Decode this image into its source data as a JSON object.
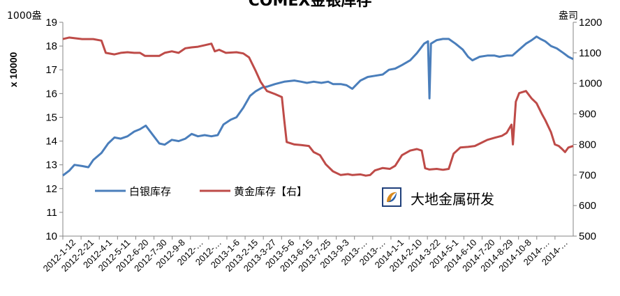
{
  "title": "COMEX金银库存",
  "left_unit": "1000盎",
  "right_unit": "盎司",
  "left_axis_label": "x 10000",
  "watermark": {
    "text": "大地金属研发",
    "icon": "dadi-logo-icon"
  },
  "colors": {
    "silver": "#4A7EBB",
    "gold": "#BE4B48",
    "axis": "#868686"
  },
  "chart_data": {
    "type": "line",
    "title": "COMEX金银库存",
    "legend_position": "center-left-inside",
    "grid": false,
    "x_tick_labels": [
      "2012-1-12",
      "2012-2-21",
      "2012-4-1",
      "2012-5-11",
      "2012-6-20",
      "2012-7-30",
      "2012-9-8",
      "2012-…",
      "2012-…",
      "2013-1-6",
      "2013-2-15",
      "2013-3-27",
      "2013-5-6",
      "2013-6-15",
      "2013-7-25",
      "2013-9-3",
      "2013-…",
      "2013-…",
      "2014-1-1",
      "2014-2-10",
      "2014-3-22",
      "2014-5-1",
      "2014-6-10",
      "2014-7-20",
      "2014-8-29",
      "2014-10-8",
      "2014-…",
      "2014-…"
    ],
    "x_range": [
      "2012-1-12",
      "2014-12-05"
    ],
    "y_left": {
      "label": "x 10000",
      "unit": "1000盎",
      "min": 10,
      "max": 19,
      "ticks": [
        10,
        11,
        12,
        13,
        14,
        15,
        16,
        17,
        18,
        19
      ]
    },
    "y_right": {
      "unit": "盎司",
      "min": 500,
      "max": 1200,
      "ticks": [
        500,
        600,
        700,
        800,
        900,
        1000,
        1100,
        1200
      ]
    },
    "series": [
      {
        "name": "白银库存",
        "axis": "left",
        "color": "#4A7EBB",
        "points": [
          [
            "2012-01-12",
            12.55
          ],
          [
            "2012-01-25",
            12.75
          ],
          [
            "2012-02-05",
            13.0
          ],
          [
            "2012-02-21",
            12.95
          ],
          [
            "2012-03-05",
            12.9
          ],
          [
            "2012-03-15",
            13.2
          ],
          [
            "2012-04-01",
            13.5
          ],
          [
            "2012-04-15",
            13.9
          ],
          [
            "2012-04-28",
            14.15
          ],
          [
            "2012-05-11",
            14.1
          ],
          [
            "2012-05-25",
            14.2
          ],
          [
            "2012-06-08",
            14.4
          ],
          [
            "2012-06-20",
            14.5
          ],
          [
            "2012-07-02",
            14.65
          ],
          [
            "2012-07-15",
            14.3
          ],
          [
            "2012-07-30",
            13.9
          ],
          [
            "2012-08-10",
            13.85
          ],
          [
            "2012-08-25",
            14.05
          ],
          [
            "2012-09-08",
            14.0
          ],
          [
            "2012-09-22",
            14.1
          ],
          [
            "2012-10-05",
            14.3
          ],
          [
            "2012-10-18",
            14.2
          ],
          [
            "2012-11-01",
            14.25
          ],
          [
            "2012-11-15",
            14.2
          ],
          [
            "2012-11-28",
            14.25
          ],
          [
            "2012-12-10",
            14.7
          ],
          [
            "2012-12-25",
            14.9
          ],
          [
            "2013-01-06",
            15.0
          ],
          [
            "2013-01-20",
            15.4
          ],
          [
            "2013-02-03",
            15.9
          ],
          [
            "2013-02-15",
            16.1
          ],
          [
            "2013-02-28",
            16.25
          ],
          [
            "2013-03-12",
            16.3
          ],
          [
            "2013-03-27",
            16.4
          ],
          [
            "2013-04-15",
            16.5
          ],
          [
            "2013-05-06",
            16.55
          ],
          [
            "2013-05-20",
            16.5
          ],
          [
            "2013-06-01",
            16.45
          ],
          [
            "2013-06-15",
            16.5
          ],
          [
            "2013-07-01",
            16.45
          ],
          [
            "2013-07-15",
            16.5
          ],
          [
            "2013-07-25",
            16.4
          ],
          [
            "2013-08-10",
            16.4
          ],
          [
            "2013-08-22",
            16.35
          ],
          [
            "2013-09-03",
            16.2
          ],
          [
            "2013-09-20",
            16.55
          ],
          [
            "2013-10-05",
            16.7
          ],
          [
            "2013-10-20",
            16.75
          ],
          [
            "2013-11-05",
            16.8
          ],
          [
            "2013-11-18",
            17.0
          ],
          [
            "2013-12-01",
            17.05
          ],
          [
            "2013-12-15",
            17.2
          ],
          [
            "2014-01-01",
            17.4
          ],
          [
            "2014-01-15",
            17.7
          ],
          [
            "2014-01-30",
            18.1
          ],
          [
            "2014-02-07",
            18.2
          ],
          [
            "2014-02-10",
            15.8
          ],
          [
            "2014-02-13",
            18.1
          ],
          [
            "2014-02-25",
            18.25
          ],
          [
            "2014-03-10",
            18.3
          ],
          [
            "2014-03-22",
            18.3
          ],
          [
            "2014-04-05",
            18.1
          ],
          [
            "2014-04-20",
            17.85
          ],
          [
            "2014-05-01",
            17.55
          ],
          [
            "2014-05-10",
            17.4
          ],
          [
            "2014-05-25",
            17.55
          ],
          [
            "2014-06-10",
            17.6
          ],
          [
            "2014-06-25",
            17.6
          ],
          [
            "2014-07-05",
            17.55
          ],
          [
            "2014-07-20",
            17.6
          ],
          [
            "2014-08-01",
            17.6
          ],
          [
            "2014-08-15",
            17.85
          ],
          [
            "2014-08-29",
            18.1
          ],
          [
            "2014-09-10",
            18.25
          ],
          [
            "2014-09-20",
            18.4
          ],
          [
            "2014-09-28",
            18.3
          ],
          [
            "2014-10-08",
            18.2
          ],
          [
            "2014-10-20",
            18.0
          ],
          [
            "2014-11-01",
            17.9
          ],
          [
            "2014-11-15",
            17.7
          ],
          [
            "2014-11-25",
            17.55
          ],
          [
            "2014-12-05",
            17.45
          ]
        ]
      },
      {
        "name": "黄金库存【右】",
        "axis": "right",
        "color": "#BE4B48",
        "points": [
          [
            "2012-01-12",
            1145
          ],
          [
            "2012-01-25",
            1150
          ],
          [
            "2012-02-21",
            1145
          ],
          [
            "2012-03-15",
            1145
          ],
          [
            "2012-04-01",
            1140
          ],
          [
            "2012-04-10",
            1100
          ],
          [
            "2012-04-28",
            1095
          ],
          [
            "2012-05-11",
            1100
          ],
          [
            "2012-05-25",
            1102
          ],
          [
            "2012-06-08",
            1100
          ],
          [
            "2012-06-20",
            1100
          ],
          [
            "2012-06-30",
            1090
          ],
          [
            "2012-07-30",
            1090
          ],
          [
            "2012-08-10",
            1100
          ],
          [
            "2012-08-25",
            1105
          ],
          [
            "2012-09-08",
            1100
          ],
          [
            "2012-09-22",
            1115
          ],
          [
            "2012-10-05",
            1118
          ],
          [
            "2012-10-18",
            1120
          ],
          [
            "2012-11-01",
            1125
          ],
          [
            "2012-11-15",
            1130
          ],
          [
            "2012-11-22",
            1105
          ],
          [
            "2012-12-01",
            1110
          ],
          [
            "2012-12-15",
            1100
          ],
          [
            "2013-01-06",
            1102
          ],
          [
            "2013-01-20",
            1098
          ],
          [
            "2013-02-01",
            1085
          ],
          [
            "2013-02-15",
            1040
          ],
          [
            "2013-02-25",
            1005
          ],
          [
            "2013-03-10",
            975
          ],
          [
            "2013-03-27",
            965
          ],
          [
            "2013-04-10",
            955
          ],
          [
            "2013-04-15",
            880
          ],
          [
            "2013-04-20",
            808
          ],
          [
            "2013-05-06",
            800
          ],
          [
            "2013-05-20",
            798
          ],
          [
            "2013-06-05",
            795
          ],
          [
            "2013-06-15",
            775
          ],
          [
            "2013-06-28",
            765
          ],
          [
            "2013-07-10",
            735
          ],
          [
            "2013-07-25",
            712
          ],
          [
            "2013-08-10",
            700
          ],
          [
            "2013-08-25",
            703
          ],
          [
            "2013-09-03",
            700
          ],
          [
            "2013-09-20",
            702
          ],
          [
            "2013-10-01",
            698
          ],
          [
            "2013-10-10",
            700
          ],
          [
            "2013-10-20",
            715
          ],
          [
            "2013-11-05",
            723
          ],
          [
            "2013-11-20",
            720
          ],
          [
            "2013-12-01",
            730
          ],
          [
            "2013-12-15",
            765
          ],
          [
            "2014-01-01",
            780
          ],
          [
            "2014-01-15",
            785
          ],
          [
            "2014-01-25",
            780
          ],
          [
            "2014-02-01",
            722
          ],
          [
            "2014-02-10",
            718
          ],
          [
            "2014-02-25",
            720
          ],
          [
            "2014-03-10",
            717
          ],
          [
            "2014-03-22",
            720
          ],
          [
            "2014-04-01",
            770
          ],
          [
            "2014-04-15",
            790
          ],
          [
            "2014-05-01",
            792
          ],
          [
            "2014-05-15",
            795
          ],
          [
            "2014-06-01",
            808
          ],
          [
            "2014-06-10",
            815
          ],
          [
            "2014-06-25",
            822
          ],
          [
            "2014-07-10",
            828
          ],
          [
            "2014-07-20",
            838
          ],
          [
            "2014-07-30",
            865
          ],
          [
            "2014-08-02",
            800
          ],
          [
            "2014-08-08",
            940
          ],
          [
            "2014-08-15",
            968
          ],
          [
            "2014-08-29",
            975
          ],
          [
            "2014-09-10",
            950
          ],
          [
            "2014-09-20",
            935
          ],
          [
            "2014-10-01",
            900
          ],
          [
            "2014-10-08",
            880
          ],
          [
            "2014-10-20",
            840
          ],
          [
            "2014-10-28",
            800
          ],
          [
            "2014-11-05",
            795
          ],
          [
            "2014-11-12",
            785
          ],
          [
            "2014-11-18",
            775
          ],
          [
            "2014-11-25",
            790
          ],
          [
            "2014-12-05",
            795
          ]
        ]
      }
    ]
  }
}
